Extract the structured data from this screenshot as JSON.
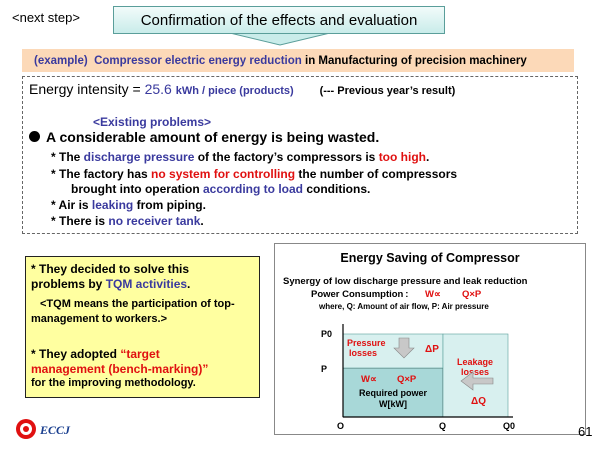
{
  "header": {
    "next_step": "<next step>",
    "banner_title": "Confirmation of the effects and evaluation"
  },
  "example": {
    "prefix": "(example)",
    "subject": "Compressor electric energy reduction",
    "suffix": "in Manufacturing of precision machinery"
  },
  "intensity": {
    "label": "Energy intensity =",
    "value": "25.6",
    "unit": "kWh / piece (products)",
    "note": "(--- Previous year’s result)"
  },
  "problems": {
    "heading": "<Existing problems>",
    "main": "A considerable amount of energy is being wasted.",
    "item1": {
      "a": "* The ",
      "b": "discharge pressure",
      "c": " of the factory’s compressors  is ",
      "d": "too high",
      "e": "."
    },
    "item2": {
      "a": "* The factory has ",
      "b": "no system for controlling",
      "c": " the number of compressors",
      "d": "brought into operation ",
      "e": "according to load",
      "f": " conditions."
    },
    "item3": {
      "a": "*  Air is ",
      "b": "leaking",
      "c": " from piping."
    },
    "item4": {
      "a": "* There is ",
      "b": "no receiver tank",
      "c": "."
    }
  },
  "tqm": {
    "l1": "* They decided to solve this",
    "l2a": "problems by ",
    "l2b": "TQM activities",
    "l2c": ".",
    "l3": "<TQM means the participation of top-",
    "l4": "management to workers.>",
    "l5a": "* They adopted ",
    "l5b": "“target",
    "l6a": "management (bench-marking)”",
    "l7": "for the improving methodology."
  },
  "chart": {
    "title": "Energy Saving of Compressor",
    "subtitle": "Synergy of low discharge pressure and leak reduction",
    "formula_label": "Power Consumption :",
    "formula_w": "W∝",
    "formula_qp": "Q×P",
    "where": "where, Q: Amount of air flow, P: Air pressure",
    "p0": "P0",
    "p": "P",
    "origin": "O",
    "q": "Q",
    "q0": "Q0",
    "pressure_losses": "Pressure losses",
    "delta_p": "ΔP",
    "leakage_losses": "Leakage losses",
    "delta_q": "ΔQ",
    "inner_w": "W∝",
    "inner_qp": "Q×P",
    "required_power": "Required power",
    "wkw": "W[kW]"
  },
  "footer": {
    "logo": "ECCJ",
    "page": "61"
  },
  "colors": {
    "blue_text": "#3a3a9e",
    "red_text": "#e01010",
    "example_bg": "#fcd9b8",
    "yellow_box": "#ffffa0",
    "area_fill": "#a8d8d8",
    "chart_red": "#e01010"
  }
}
